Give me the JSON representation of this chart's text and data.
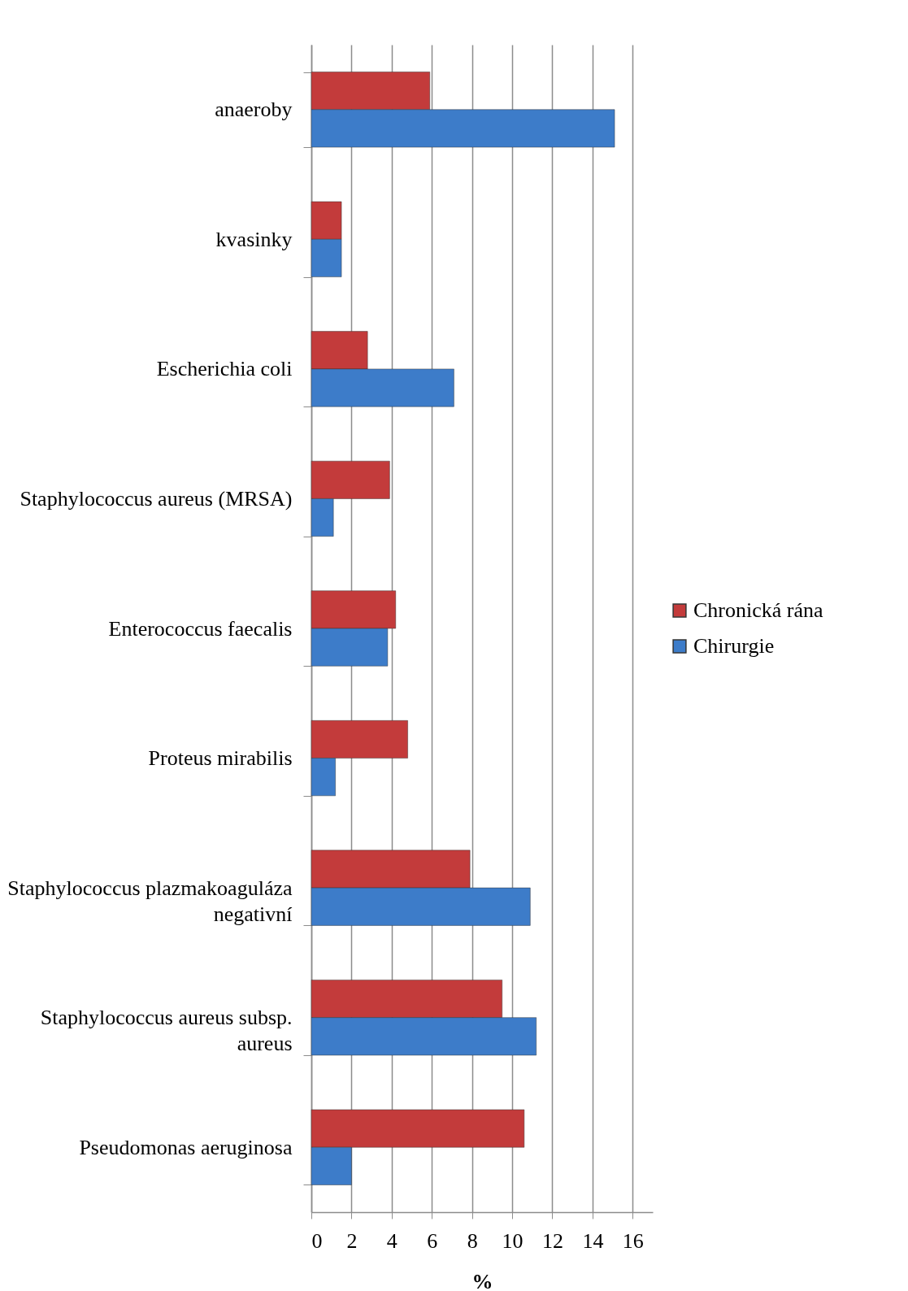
{
  "chart_data": {
    "type": "bar",
    "orientation": "horizontal",
    "xlabel": "%",
    "categories": [
      "anaeroby",
      "kvasinky",
      "Escherichia coli",
      "Staphylococcus aureus (MRSA)",
      "Enterococcus faecalis",
      "Proteus mirabilis",
      "Staphylococcus plazmakoaguláza negativní",
      "Staphylococcus aureus subsp. aureus",
      "Pseudomonas aeruginosa"
    ],
    "series": [
      {
        "name": "Chronická rána",
        "color": "#c33b3b",
        "values": [
          5.9,
          1.5,
          2.8,
          3.9,
          4.2,
          4.8,
          7.9,
          9.5,
          10.6
        ]
      },
      {
        "name": "Chirurgie",
        "color": "#3d7cc9",
        "values": [
          15.1,
          1.5,
          7.1,
          1.1,
          3.8,
          1.2,
          10.9,
          11.2,
          2.0
        ]
      }
    ],
    "xlim": [
      0,
      17
    ],
    "xticks": [
      0,
      2,
      4,
      6,
      8,
      10,
      12,
      14,
      16
    ],
    "grid": "x",
    "legend": "right"
  }
}
